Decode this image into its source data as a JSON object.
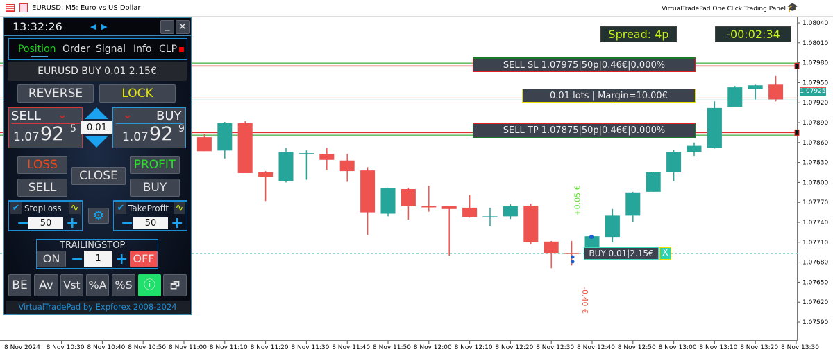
{
  "window": {
    "title": "EURUSD, M5:  Euro vs US Dollar",
    "right_title": "VirtualTradePad One Click Trading Panel"
  },
  "panel": {
    "time": "13:32:26",
    "minimize": "_",
    "close": "✕",
    "tabs": [
      {
        "label": "Position",
        "active": true
      },
      {
        "label": "Order"
      },
      {
        "label": "Signal"
      },
      {
        "label": "Info"
      },
      {
        "label": "CLP"
      }
    ],
    "position_summary": "EURUSD BUY 0.01 2.15€",
    "reverse": "REVERSE",
    "lock": "LOCK",
    "sell": {
      "label": "SELL",
      "price_main": "1.07",
      "price_big": "92",
      "price_sup": "5"
    },
    "buy": {
      "label": "BUY",
      "price_main": "1.07",
      "price_big": "92",
      "price_sup": "9"
    },
    "lots": "0.01",
    "loss": "LOSS",
    "profit": "PROFIT",
    "close_btn": "CLOSE",
    "sell_btn": "SELL",
    "buy_btn": "BUY",
    "stoploss": {
      "label": "StopLoss",
      "checked": true,
      "value": "50"
    },
    "takeprofit": {
      "label": "TakeProfit",
      "checked": true,
      "value": "50"
    },
    "trailing": {
      "label": "TRAILINGSTOP",
      "on": "ON",
      "off": "OFF",
      "value": "1"
    },
    "bottom_buttons": [
      "BE",
      "Av",
      "Vst",
      "%A",
      "%S",
      "ⓘ",
      "🗗"
    ],
    "footer": "VirtualTradePad by Expforex 2008-2024"
  },
  "overlays": {
    "spread": "Spread: 4p",
    "timer": "-00:02:34",
    "sl_label": "SELL SL 1.07975|50p|0.46€|0.000%",
    "lots_label": "0.01 lots | Margin=10.00€",
    "tp_label": "SELL TP 1.07875|50p|0.46€|0.000%",
    "buy_label": "BUY 0.01|2.15€",
    "buy_close": "X",
    "profit_tp": "+0.05 €",
    "loss_sl": "-0.40 €",
    "current_price": "1.07925"
  },
  "colors": {
    "bull": "#26a69a",
    "bear": "#ef5350",
    "accent": "#1ba3f0",
    "panel_bg": "#0d1524"
  },
  "chart_data": {
    "type": "candlestick",
    "symbol": "EURUSD",
    "timeframe": "M5",
    "y_ticks": [
      "1.08040",
      "1.08010",
      "1.07980",
      "1.07950",
      "1.07920",
      "1.07890",
      "1.07860",
      "1.07830",
      "1.07800",
      "1.07770",
      "1.07740",
      "1.07710",
      "1.07680",
      "1.07650",
      "1.07620",
      "1.07590"
    ],
    "x_ticks": [
      "8 Nov 2024",
      "8 Nov 10:30",
      "8 Nov 10:40",
      "8 Nov 10:50",
      "8 Nov 11:00",
      "8 Nov 11:10",
      "8 Nov 11:20",
      "8 Nov 11:30",
      "8 Nov 11:40",
      "8 Nov 11:50",
      "8 Nov 12:00",
      "8 Nov 12:10",
      "8 Nov 12:20",
      "8 Nov 12:30",
      "8 Nov 12:40",
      "8 Nov 12:50",
      "8 Nov 13:00",
      "8 Nov 13:10",
      "8 Nov 13:20",
      "8 Nov 13:30"
    ],
    "levels": {
      "sl": 1.07975,
      "tp": 1.07875,
      "bid": 1.07925,
      "entry": 1.07693
    },
    "candles": [
      [
        "11:05",
        1.07868,
        1.07873,
        1.07847,
        1.07847
      ],
      [
        "11:10",
        1.07848,
        1.07891,
        1.07836,
        1.07889
      ],
      [
        "11:15",
        1.07889,
        1.07892,
        1.07814,
        1.07814
      ],
      [
        "11:20",
        1.07815,
        1.07817,
        1.07772,
        1.07808
      ],
      [
        "11:25",
        1.07802,
        1.07852,
        1.078,
        1.07846
      ],
      [
        "11:30",
        1.07843,
        1.07848,
        1.07804,
        1.07844
      ],
      [
        "11:35",
        1.07843,
        1.07852,
        1.07819,
        1.07834
      ],
      [
        "11:40",
        1.07833,
        1.07843,
        1.07801,
        1.07817
      ],
      [
        "11:45",
        1.07818,
        1.07823,
        1.07721,
        1.07755
      ],
      [
        "11:50",
        1.07753,
        1.07792,
        1.07749,
        1.07791
      ],
      [
        "11:55",
        1.0779,
        1.07792,
        1.07744,
        1.07764
      ],
      [
        "12:00",
        1.07764,
        1.07795,
        1.07756,
        1.07763
      ],
      [
        "12:05",
        1.07764,
        1.07764,
        1.0769,
        1.0776
      ],
      [
        "12:10",
        1.07762,
        1.07781,
        1.07747,
        1.07748
      ],
      [
        "12:15",
        1.07749,
        1.07762,
        1.07734,
        1.07749
      ],
      [
        "12:20",
        1.07749,
        1.07767,
        1.07745,
        1.07764
      ],
      [
        "12:25",
        1.07765,
        1.07768,
        1.07707,
        1.0771
      ],
      [
        "12:30",
        1.07711,
        1.07712,
        1.07671,
        1.07693
      ],
      [
        "12:35",
        1.07694,
        1.07712,
        1.07675,
        1.07693
      ],
      [
        "12:40",
        1.07703,
        1.07721,
        1.07703,
        1.07719
      ],
      [
        "12:45",
        1.07718,
        1.0776,
        1.0771,
        1.0775
      ],
      [
        "12:50",
        1.0775,
        1.07786,
        1.07741,
        1.07785
      ],
      [
        "12:55",
        1.07786,
        1.07816,
        1.07786,
        1.07815
      ],
      [
        "13:00",
        1.07815,
        1.07849,
        1.07802,
        1.07846
      ],
      [
        "13:05",
        1.07846,
        1.0786,
        1.0784,
        1.07855
      ],
      [
        "13:10",
        1.07852,
        1.07922,
        1.07851,
        1.07912
      ],
      [
        "13:15",
        1.07914,
        1.07945,
        1.07914,
        1.07943
      ],
      [
        "13:20",
        1.07941,
        1.07947,
        1.07925,
        1.07946
      ],
      [
        "13:25",
        1.07947,
        1.0796,
        1.07922,
        1.07925
      ]
    ]
  }
}
